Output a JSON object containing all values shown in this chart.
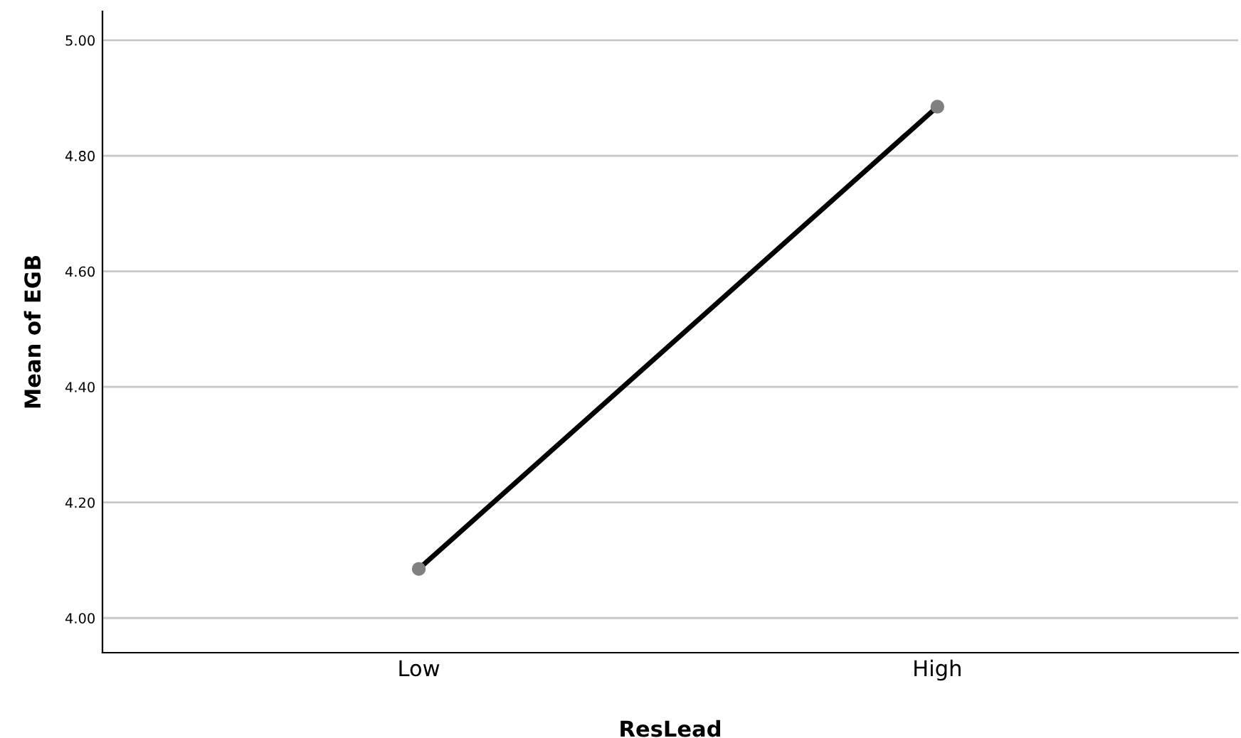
{
  "chart_data": {
    "type": "line",
    "xlabel": "ResLead",
    "ylabel": "Mean of EGB",
    "categories": [
      "Low",
      "High"
    ],
    "series": [
      {
        "color": "#000000",
        "values": [
          4.085,
          4.885
        ]
      }
    ],
    "marker": "circle",
    "line_style": "solid",
    "ylim": [
      3.94,
      5.05
    ],
    "yticks": [
      {
        "value": 4.0,
        "label": "4.00"
      },
      {
        "value": 4.2,
        "label": "4.20"
      },
      {
        "value": 4.4,
        "label": "4.40"
      },
      {
        "value": 4.6,
        "label": "4.60"
      },
      {
        "value": 4.8,
        "label": "4.80"
      },
      {
        "value": 5.0,
        "label": "5.00"
      }
    ],
    "grid": "y",
    "legend": false
  }
}
